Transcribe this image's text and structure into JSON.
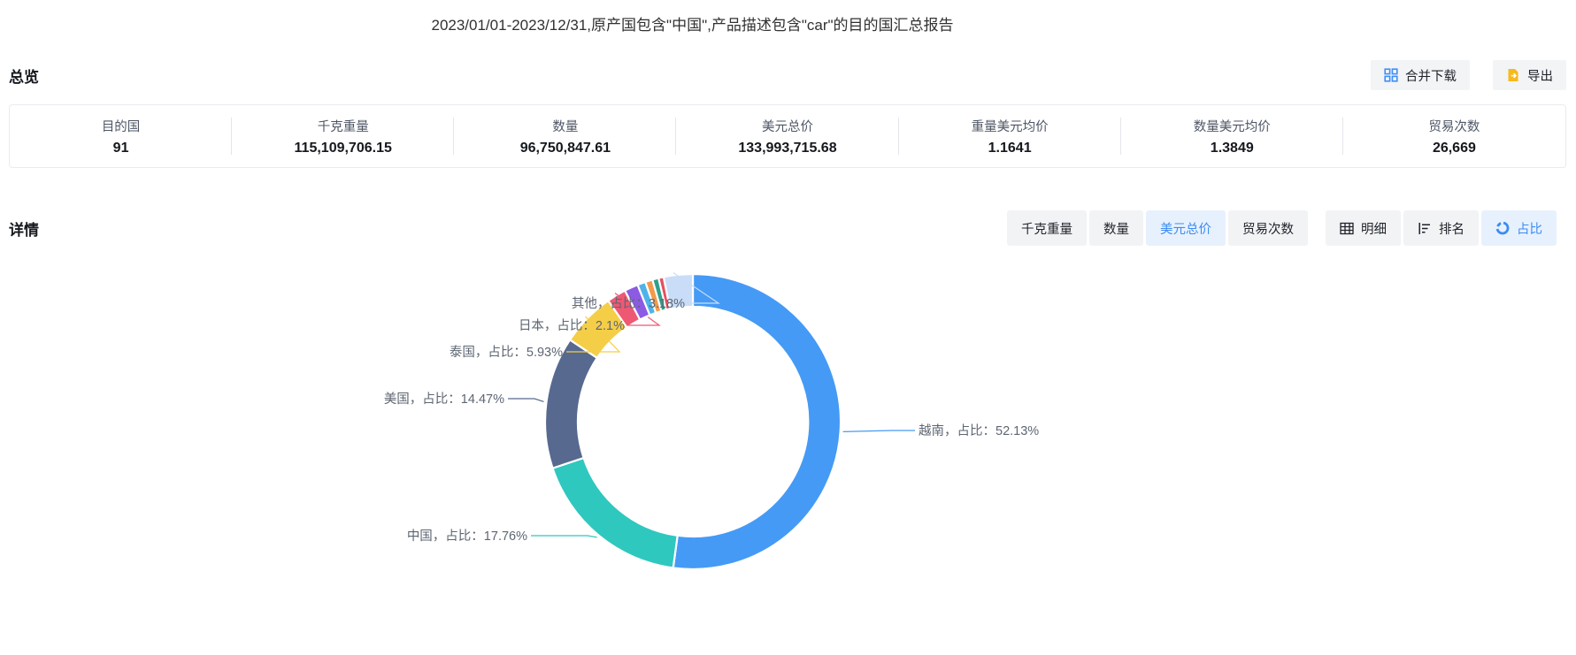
{
  "title": "2023/01/01-2023/12/31,原产国包含\"中国\",产品描述包含\"car\"的目的国汇总报告",
  "accent_color": "#3C8CF0",
  "overview": {
    "heading": "总览",
    "actions": [
      {
        "label": "合并下载",
        "icon": "merge-download-icon"
      },
      {
        "label": "导出",
        "icon": "export-icon"
      }
    ],
    "stats": [
      {
        "label": "目的国",
        "value": "91"
      },
      {
        "label": "千克重量",
        "value": "115,109,706.15"
      },
      {
        "label": "数量",
        "value": "96,750,847.61"
      },
      {
        "label": "美元总价",
        "value": "133,993,715.68"
      },
      {
        "label": "重量美元均价",
        "value": "1.1641"
      },
      {
        "label": "数量美元均价",
        "value": "1.3849"
      },
      {
        "label": "贸易次数",
        "value": "26,669"
      }
    ]
  },
  "details": {
    "heading": "详情",
    "metric_tabs": [
      {
        "label": "千克重量",
        "active": false
      },
      {
        "label": "数量",
        "active": false
      },
      {
        "label": "美元总价",
        "active": true
      },
      {
        "label": "贸易次数",
        "active": false
      }
    ],
    "view_tabs": [
      {
        "label": "明细",
        "icon": "table-icon",
        "active": false
      },
      {
        "label": "排名",
        "icon": "ranking-icon",
        "active": false
      },
      {
        "label": "占比",
        "icon": "pie-icon",
        "active": true
      }
    ]
  },
  "chart_data": {
    "type": "pie",
    "shape": "donut",
    "metric": "美元总价",
    "value_kind": "占比 (%)",
    "slices": [
      {
        "name": "越南",
        "pct": 52.13,
        "color": "#459AF5",
        "label": "越南，占比：52.13%"
      },
      {
        "name": "中国",
        "pct": 17.76,
        "color": "#2EC8BE",
        "label": "中国，占比：17.76%"
      },
      {
        "name": "美国",
        "pct": 14.47,
        "color": "#57698F",
        "label": "美国，占比：14.47%"
      },
      {
        "name": "泰国",
        "pct": 5.93,
        "color": "#F5CE48",
        "label": "泰国，占比：5.93%"
      },
      {
        "name": "日本",
        "pct": 2.1,
        "color": "#EF5873",
        "label": "日本，占比：2.1%"
      },
      {
        "name": "",
        "pct": 1.5,
        "color": "#8C5AE3",
        "label": ""
      },
      {
        "name": "",
        "pct": 0.9,
        "color": "#4FB3E8",
        "label": ""
      },
      {
        "name": "",
        "pct": 0.8,
        "color": "#F29A4B",
        "label": ""
      },
      {
        "name": "",
        "pct": 0.68,
        "color": "#2FA08C",
        "label": ""
      },
      {
        "name": "",
        "pct": 0.55,
        "color": "#E64F5E",
        "label": ""
      },
      {
        "name": "其他",
        "pct": 3.18,
        "color": "#C9DDF8",
        "label": "其他，占比：3.18%"
      }
    ]
  }
}
